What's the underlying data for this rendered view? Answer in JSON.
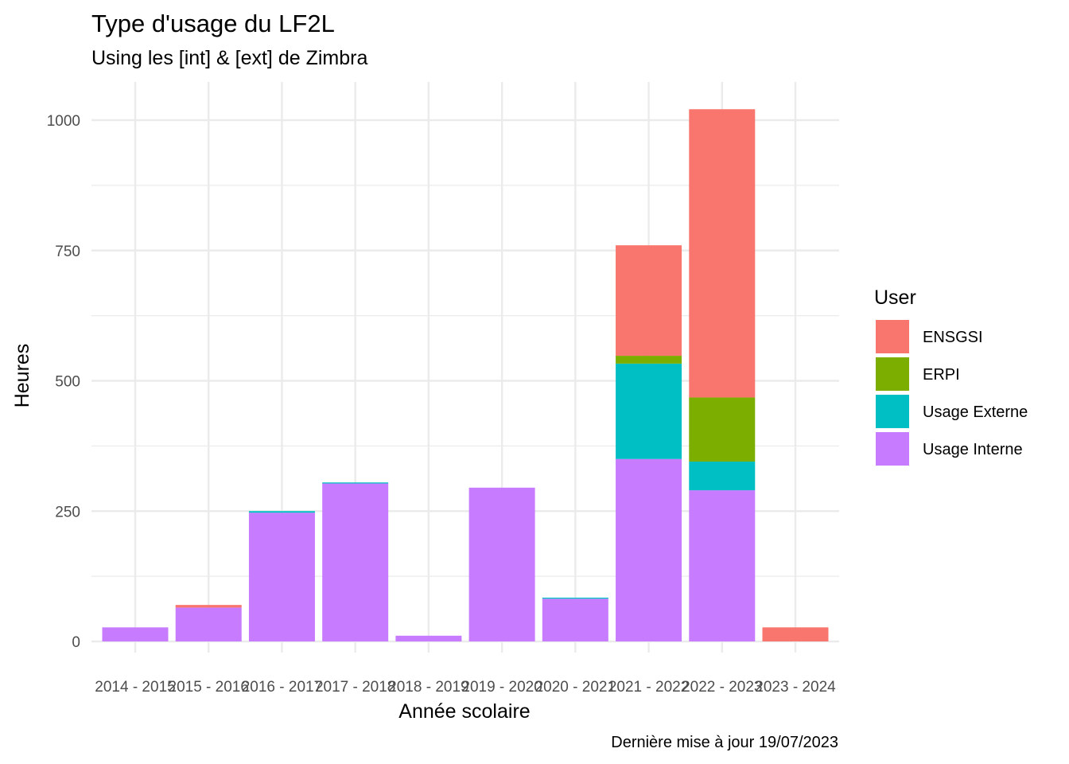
{
  "chart_data": {
    "type": "bar",
    "stacked": true,
    "title": "Type d'usage du LF2L",
    "subtitle": "Using les [int] & [ext] de Zimbra",
    "caption": "Dernière mise à jour 19/07/2023",
    "xlabel": "Année scolaire",
    "ylabel": "Heures",
    "ylim": [
      0,
      1065
    ],
    "yticks": [
      0,
      250,
      500,
      750,
      1000
    ],
    "grid": true,
    "legend_title": "User",
    "legend_position": "right",
    "categories": [
      "2014 - 2015",
      "2015 - 2016",
      "2016 - 2017",
      "2017 - 2018",
      "2018 - 2019",
      "2019 - 2020",
      "2020 - 2021",
      "2021 - 2022",
      "2022 - 2023",
      "2023 - 2024"
    ],
    "series": [
      {
        "name": "Usage Interne",
        "color": "#C77CFF",
        "values": [
          27,
          65,
          247,
          303,
          11,
          295,
          82,
          350,
          290,
          0
        ]
      },
      {
        "name": "Usage Externe",
        "color": "#00BFC4",
        "values": [
          0,
          0,
          3,
          2,
          0,
          0,
          2,
          183,
          55,
          0
        ]
      },
      {
        "name": "ERPI",
        "color": "#7CAE00",
        "values": [
          0,
          0,
          0,
          0,
          0,
          0,
          0,
          15,
          123,
          0
        ]
      },
      {
        "name": "ENSGSI",
        "color": "#F8766D",
        "values": [
          0,
          5,
          0,
          0,
          0,
          0,
          0,
          212,
          553,
          27
        ]
      }
    ],
    "legend_order": [
      "ENSGSI",
      "ERPI",
      "Usage Externe",
      "Usage Interne"
    ]
  }
}
